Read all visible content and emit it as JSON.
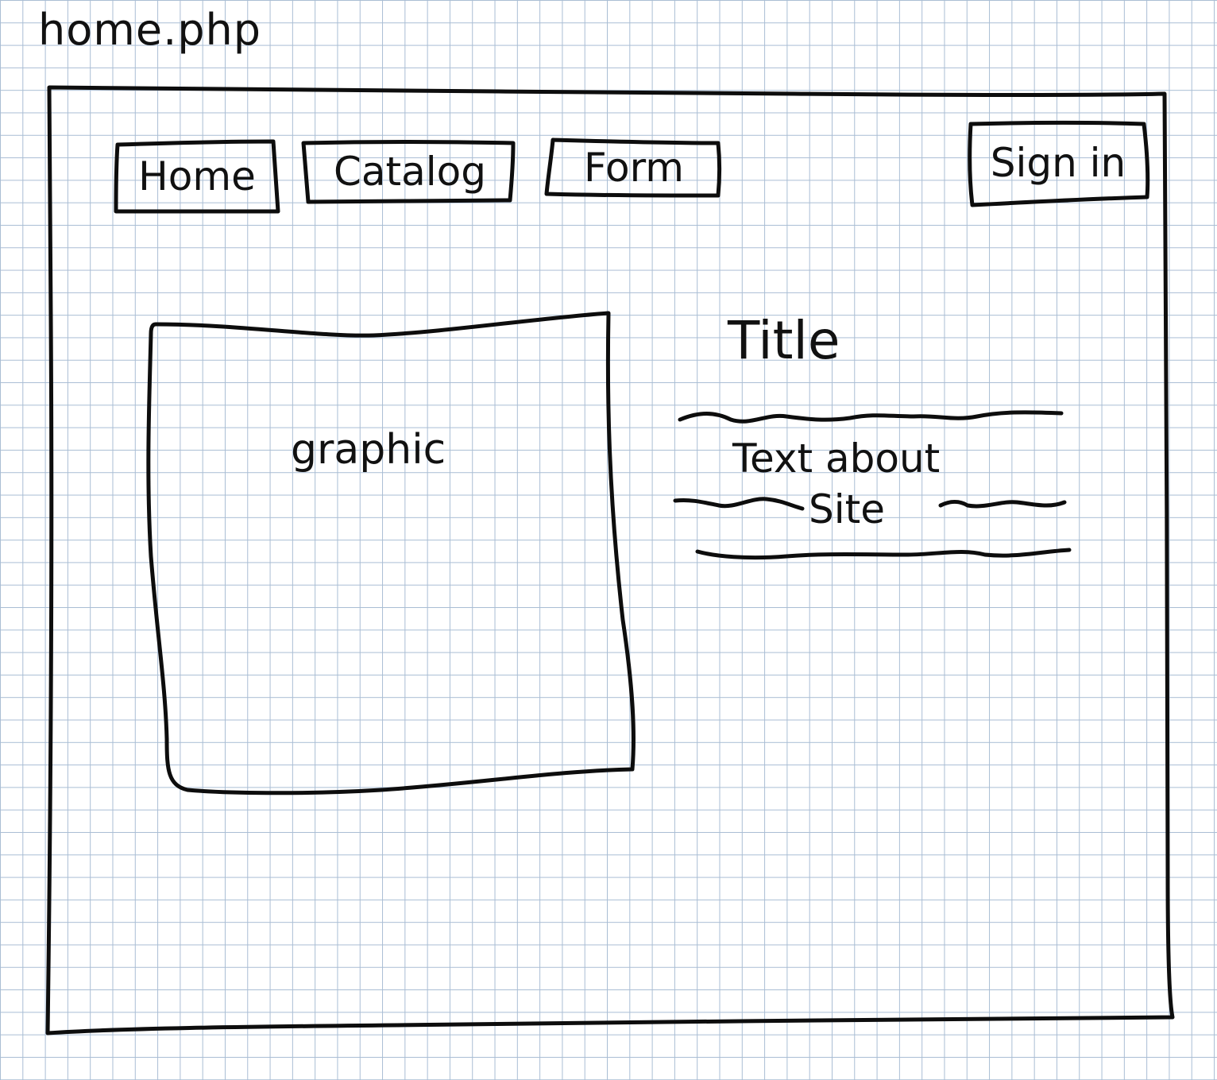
{
  "sketch": {
    "filename": "home.php",
    "nav": {
      "items": [
        {
          "label": "Home"
        },
        {
          "label": "Catalog"
        },
        {
          "label": "Form"
        }
      ],
      "signin_label": "Sign in"
    },
    "graphic": {
      "label": "graphic"
    },
    "hero": {
      "title": "Title",
      "text_line1": "Text about",
      "text_line2": "Site"
    }
  }
}
